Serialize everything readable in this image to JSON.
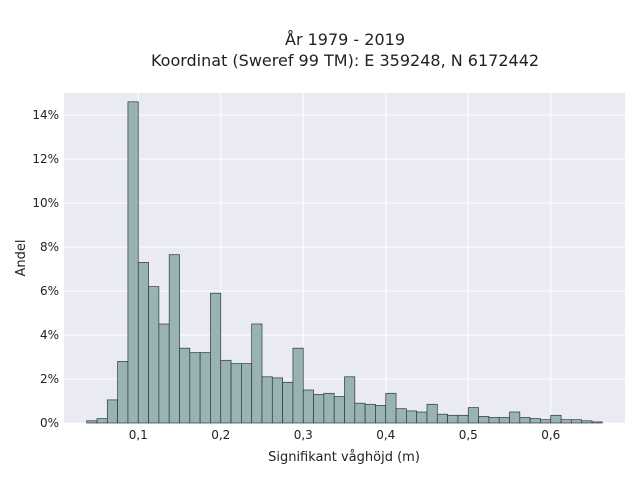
{
  "chart_data": {
    "type": "bar",
    "title": "År 1979 - 2019",
    "subtitle": "Koordinat (Sweref 99 TM): E 359248, N 6172442",
    "xlabel": "Signifikant våghöjd (m)",
    "ylabel": "Andel",
    "xlim": [
      0.01,
      0.69
    ],
    "ylim": [
      0,
      15
    ],
    "x_ticks": [
      0.1,
      0.2,
      0.3,
      0.4,
      0.5,
      0.6
    ],
    "x_tick_labels": [
      "0,1",
      "0,2",
      "0,3",
      "0,4",
      "0,5",
      "0,6"
    ],
    "y_ticks": [
      0,
      2,
      4,
      6,
      8,
      10,
      12,
      14
    ],
    "y_tick_labels": [
      "0%",
      "2%",
      "4%",
      "6%",
      "8%",
      "10%",
      "12%",
      "14%"
    ],
    "bin_width": 0.0125,
    "bin_start": 0.0375,
    "values": [
      0.1,
      0.2,
      1.05,
      2.8,
      14.6,
      7.3,
      6.2,
      4.5,
      7.65,
      3.4,
      3.2,
      3.2,
      5.9,
      2.85,
      2.7,
      2.7,
      4.5,
      2.1,
      2.05,
      1.85,
      3.4,
      1.5,
      1.3,
      1.35,
      1.2,
      2.1,
      0.9,
      0.85,
      0.8,
      1.35,
      0.65,
      0.55,
      0.5,
      0.85,
      0.4,
      0.35,
      0.35,
      0.7,
      0.3,
      0.25,
      0.25,
      0.5,
      0.25,
      0.2,
      0.15,
      0.35,
      0.15,
      0.15,
      0.1,
      0.05
    ],
    "grid": true,
    "bar_color": "#99b3b3",
    "bar_edge_color": "#2a3a3a",
    "plot_background": "#eaeaf2",
    "grid_color": "#ffffff"
  }
}
